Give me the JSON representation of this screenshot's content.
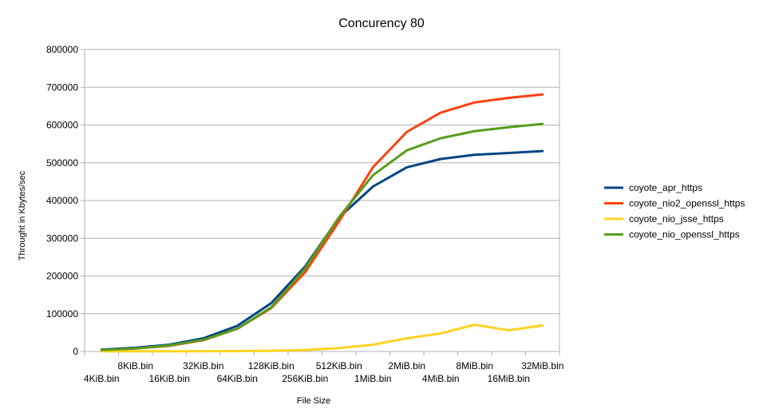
{
  "chart_data": {
    "type": "line",
    "title": "Concurency 80",
    "xlabel": "File Size",
    "ylabel": "Throught in Kbytes/sec",
    "ylim": [
      0,
      800000
    ],
    "yticks": [
      "0",
      "100000",
      "200000",
      "300000",
      "400000",
      "500000",
      "600000",
      "700000",
      "800000"
    ],
    "grid": "horizontal",
    "legend_position": "right",
    "categories": [
      "4KiB.bin",
      "8KiB.bin",
      "16KiB.bin",
      "32KiB.bin",
      "64KiB.bin",
      "128KiB.bin",
      "256KiB.bin",
      "512KiB.bin",
      "1MiB.bin",
      "2MiB.bin",
      "4MiB.bin",
      "8MiB.bin",
      "16MiB.bin",
      "32MiB.bin"
    ],
    "series": [
      {
        "name": "coyote_apr_https",
        "color": "#004586",
        "values": [
          5000,
          10000,
          18000,
          35000,
          68000,
          128000,
          225000,
          355000,
          437000,
          488000,
          510000,
          521000,
          526000,
          531000
        ]
      },
      {
        "name": "coyote_nio2_openssl_https",
        "color": "#ff420e",
        "values": [
          3000,
          8000,
          15000,
          30000,
          60000,
          115000,
          210000,
          345000,
          488000,
          582000,
          633000,
          660000,
          672000,
          681000
        ]
      },
      {
        "name": "coyote_nio_jsse_https",
        "color": "#ffd320",
        "values": [
          500,
          600,
          700,
          800,
          1000,
          2000,
          4000,
          9000,
          18000,
          35000,
          48000,
          71000,
          56000,
          69000
        ]
      },
      {
        "name": "coyote_nio_openssl_https",
        "color": "#579d1c",
        "values": [
          4000,
          8000,
          16000,
          31000,
          60000,
          117000,
          220000,
          356000,
          467000,
          533000,
          565000,
          584000,
          594000,
          603000
        ]
      }
    ]
  }
}
